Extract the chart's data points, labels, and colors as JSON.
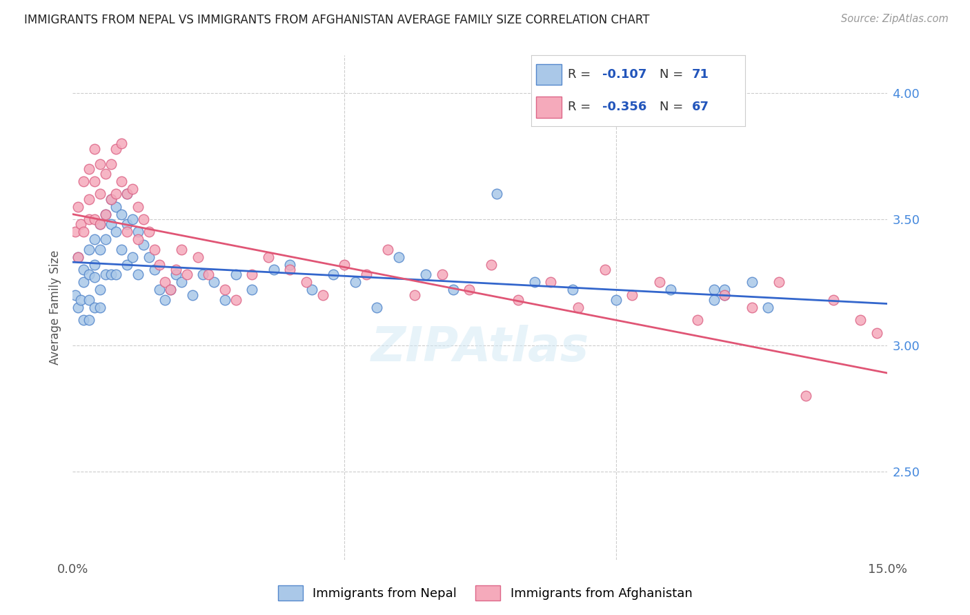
{
  "title": "IMMIGRANTS FROM NEPAL VS IMMIGRANTS FROM AFGHANISTAN AVERAGE FAMILY SIZE CORRELATION CHART",
  "source": "Source: ZipAtlas.com",
  "ylabel": "Average Family Size",
  "yticks": [
    2.5,
    3.0,
    3.5,
    4.0
  ],
  "ylim": [
    2.15,
    4.15
  ],
  "xlim_min": 0.0,
  "xlim_max": 0.15,
  "nepal_color": "#aac8e8",
  "nepal_edge": "#5588cc",
  "afghanistan_color": "#f5aabb",
  "afghanistan_edge": "#dd6688",
  "nepal_line_color": "#3366cc",
  "afghanistan_line_color": "#e05575",
  "legend_blue": "#2255bb",
  "background": "#ffffff",
  "grid_color": "#cccccc",
  "title_color": "#222222",
  "source_color": "#999999",
  "nepal_x": [
    0.0005,
    0.001,
    0.001,
    0.0015,
    0.002,
    0.002,
    0.002,
    0.003,
    0.003,
    0.003,
    0.003,
    0.004,
    0.004,
    0.004,
    0.004,
    0.005,
    0.005,
    0.005,
    0.005,
    0.006,
    0.006,
    0.006,
    0.007,
    0.007,
    0.007,
    0.008,
    0.008,
    0.008,
    0.009,
    0.009,
    0.01,
    0.01,
    0.01,
    0.011,
    0.011,
    0.012,
    0.012,
    0.013,
    0.014,
    0.015,
    0.016,
    0.017,
    0.018,
    0.019,
    0.02,
    0.022,
    0.024,
    0.026,
    0.028,
    0.03,
    0.033,
    0.037,
    0.04,
    0.044,
    0.048,
    0.052,
    0.056,
    0.06,
    0.065,
    0.07,
    0.078,
    0.085,
    0.092,
    0.1,
    0.11,
    0.12,
    0.118,
    0.125,
    0.128,
    0.118,
    0.12
  ],
  "nepal_y": [
    3.2,
    3.35,
    3.15,
    3.18,
    3.3,
    3.25,
    3.1,
    3.38,
    3.28,
    3.18,
    3.1,
    3.42,
    3.32,
    3.27,
    3.15,
    3.48,
    3.38,
    3.22,
    3.15,
    3.52,
    3.42,
    3.28,
    3.58,
    3.48,
    3.28,
    3.55,
    3.45,
    3.28,
    3.52,
    3.38,
    3.6,
    3.48,
    3.32,
    3.5,
    3.35,
    3.45,
    3.28,
    3.4,
    3.35,
    3.3,
    3.22,
    3.18,
    3.22,
    3.28,
    3.25,
    3.2,
    3.28,
    3.25,
    3.18,
    3.28,
    3.22,
    3.3,
    3.32,
    3.22,
    3.28,
    3.25,
    3.15,
    3.35,
    3.28,
    3.22,
    3.6,
    3.25,
    3.22,
    3.18,
    3.22,
    3.2,
    3.18,
    3.25,
    3.15,
    3.22,
    3.22
  ],
  "afghanistan_x": [
    0.0005,
    0.001,
    0.001,
    0.0015,
    0.002,
    0.002,
    0.003,
    0.003,
    0.003,
    0.004,
    0.004,
    0.004,
    0.005,
    0.005,
    0.005,
    0.006,
    0.006,
    0.007,
    0.007,
    0.008,
    0.008,
    0.009,
    0.009,
    0.01,
    0.01,
    0.011,
    0.012,
    0.012,
    0.013,
    0.014,
    0.015,
    0.016,
    0.017,
    0.018,
    0.019,
    0.02,
    0.021,
    0.023,
    0.025,
    0.028,
    0.03,
    0.033,
    0.036,
    0.04,
    0.043,
    0.046,
    0.05,
    0.054,
    0.058,
    0.063,
    0.068,
    0.073,
    0.077,
    0.082,
    0.088,
    0.093,
    0.098,
    0.103,
    0.108,
    0.115,
    0.12,
    0.125,
    0.13,
    0.135,
    0.14,
    0.145,
    0.148
  ],
  "afghanistan_y": [
    3.45,
    3.55,
    3.35,
    3.48,
    3.65,
    3.45,
    3.7,
    3.58,
    3.5,
    3.78,
    3.65,
    3.5,
    3.72,
    3.6,
    3.48,
    3.68,
    3.52,
    3.72,
    3.58,
    3.78,
    3.6,
    3.8,
    3.65,
    3.6,
    3.45,
    3.62,
    3.55,
    3.42,
    3.5,
    3.45,
    3.38,
    3.32,
    3.25,
    3.22,
    3.3,
    3.38,
    3.28,
    3.35,
    3.28,
    3.22,
    3.18,
    3.28,
    3.35,
    3.3,
    3.25,
    3.2,
    3.32,
    3.28,
    3.38,
    3.2,
    3.28,
    3.22,
    3.32,
    3.18,
    3.25,
    3.15,
    3.3,
    3.2,
    3.25,
    3.1,
    3.2,
    3.15,
    3.25,
    2.8,
    3.18,
    3.1,
    3.05
  ]
}
